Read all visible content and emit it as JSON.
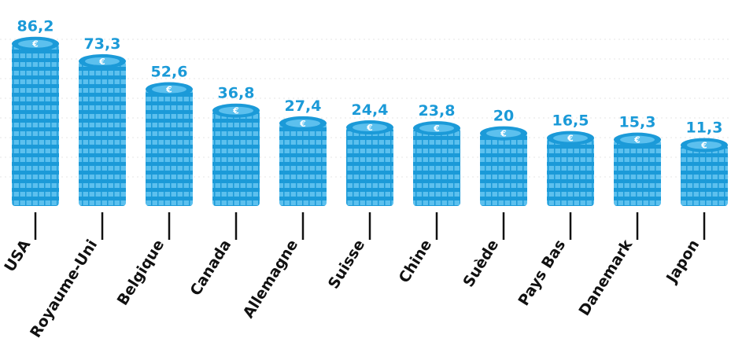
{
  "chart_data": {
    "type": "bar",
    "categories": [
      "USA",
      "Royaume-Uni",
      "Belgique",
      "Canada",
      "Allemagne",
      "Suisse",
      "Chine",
      "Suède",
      "Pays Bas",
      "Danemark",
      "Japon"
    ],
    "values": [
      86.2,
      73.3,
      52.6,
      36.8,
      27.4,
      24.4,
      23.8,
      20,
      16.5,
      15.3,
      11.3
    ],
    "value_labels": [
      "86,2",
      "73,3",
      "52,6",
      "36,8",
      "27,4",
      "24,4",
      "23,8",
      "20",
      "16,5",
      "15,3",
      "11,3"
    ],
    "color": "#1b9ad8"
  }
}
